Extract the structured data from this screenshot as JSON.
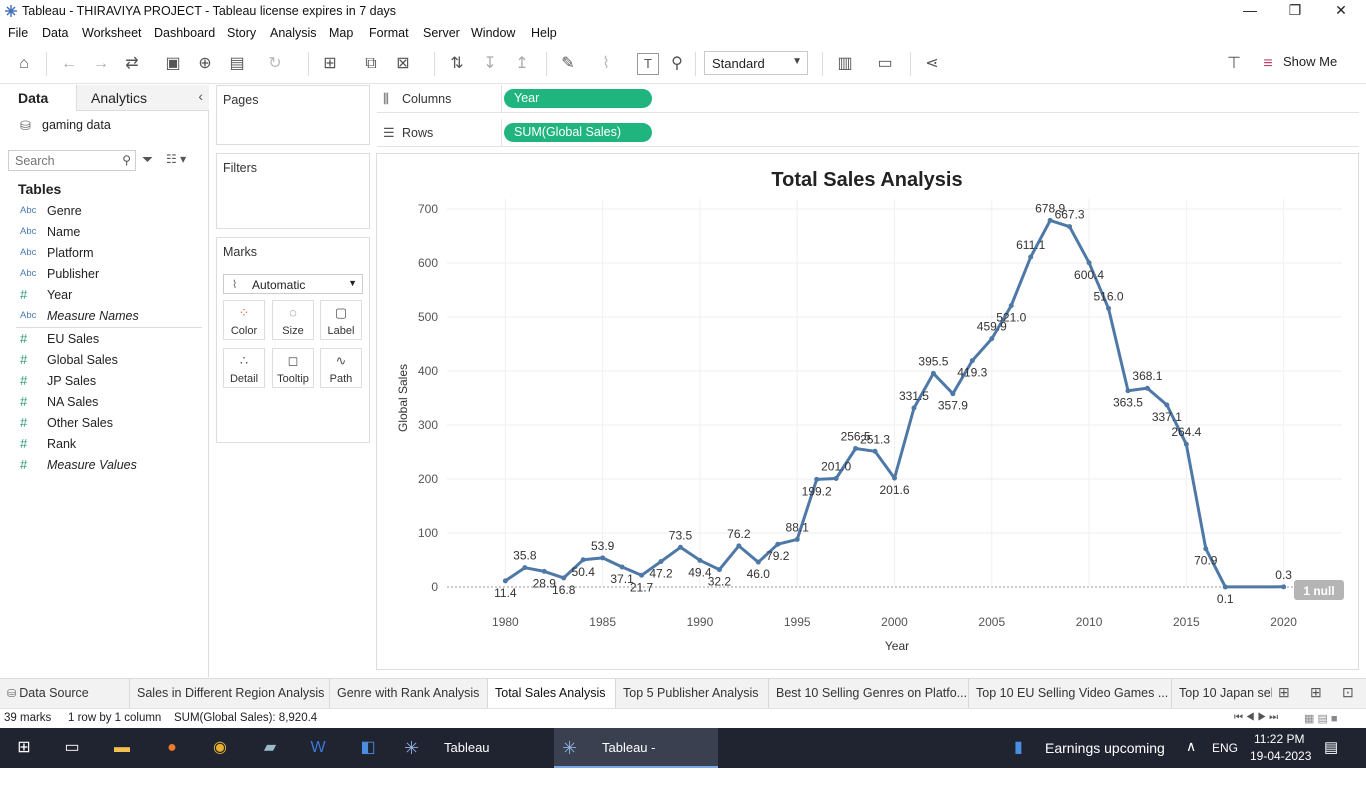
{
  "window": {
    "title": "Tableau - THIRAVIYA PROJECT - Tableau license expires in 7 days",
    "minimize": "—",
    "maximize": "❐",
    "close": "✕"
  },
  "menu": [
    "File",
    "Data",
    "Worksheet",
    "Dashboard",
    "Story",
    "Analysis",
    "Map",
    "Format",
    "Server",
    "Window",
    "Help"
  ],
  "toolbar": {
    "fit_value": "Standard",
    "show_me": "Show Me"
  },
  "left_pane": {
    "tab_data": "Data",
    "tab_analytics": "Analytics",
    "datasource": "gaming data",
    "search_placeholder": "Search",
    "tables_label": "Tables",
    "dimensions": [
      {
        "type": "Abc",
        "name": "Genre"
      },
      {
        "type": "Abc",
        "name": "Name"
      },
      {
        "type": "Abc",
        "name": "Platform"
      },
      {
        "type": "Abc",
        "name": "Publisher"
      },
      {
        "type": "#",
        "name": "Year"
      },
      {
        "type": "Abc",
        "name": "Measure Names"
      }
    ],
    "measures": [
      {
        "type": "#",
        "name": "EU Sales"
      },
      {
        "type": "#",
        "name": "Global Sales"
      },
      {
        "type": "#",
        "name": "JP Sales"
      },
      {
        "type": "#",
        "name": "NA Sales"
      },
      {
        "type": "#",
        "name": "Other Sales"
      },
      {
        "type": "#",
        "name": "Rank"
      },
      {
        "type": "#",
        "name": "Measure Values"
      }
    ]
  },
  "cards": {
    "pages": "Pages",
    "filters": "Filters",
    "marks": "Marks",
    "mark_type": "Automatic",
    "mark_buttons": [
      "Color",
      "Size",
      "Label",
      "Detail",
      "Tooltip",
      "Path"
    ]
  },
  "shelves": {
    "columns_label": "Columns",
    "columns_pill": "Year",
    "rows_label": "Rows",
    "rows_pill": "SUM(Global Sales)"
  },
  "chart_data": {
    "type": "line",
    "title": "Total Sales Analysis",
    "xlabel": "Year",
    "ylabel": "Global Sales",
    "xlim": [
      1977,
      2023
    ],
    "ylim": [
      0,
      700
    ],
    "x_ticks": [
      1980,
      1985,
      1990,
      1995,
      2000,
      2005,
      2010,
      2015,
      2020
    ],
    "y_ticks": [
      0,
      100,
      200,
      300,
      400,
      500,
      600,
      700
    ],
    "grid": true,
    "line_color": "#4e79a7",
    "null_indicator": "1 null",
    "x": [
      1980,
      1981,
      1982,
      1983,
      1984,
      1985,
      1986,
      1987,
      1988,
      1989,
      1990,
      1991,
      1992,
      1993,
      1994,
      1995,
      1996,
      1997,
      1998,
      1999,
      2000,
      2001,
      2002,
      2003,
      2004,
      2005,
      2006,
      2007,
      2008,
      2009,
      2010,
      2011,
      2012,
      2013,
      2014,
      2015,
      2016,
      2017,
      2020
    ],
    "values": [
      11.4,
      35.8,
      28.9,
      16.8,
      50.4,
      53.9,
      37.1,
      21.7,
      47.2,
      73.5,
      49.4,
      32.2,
      76.2,
      46.0,
      79.2,
      88.1,
      199.2,
      201.0,
      256.5,
      251.3,
      201.6,
      331.5,
      395.5,
      357.9,
      419.3,
      459.9,
      521.0,
      611.1,
      678.9,
      667.3,
      600.4,
      516.0,
      363.5,
      368.1,
      337.1,
      264.4,
      70.9,
      0.1,
      0.3
    ],
    "labels": [
      "11.4",
      "35.8",
      "28.9",
      "16.8",
      "50.4",
      "53.9",
      "37.1",
      "21.7",
      "47.2",
      "73.5",
      "49.4",
      "32.2",
      "76.2",
      "46.0",
      "79.2",
      "88.1",
      "199.2",
      "201.0",
      "256.5",
      "251.3",
      "201.6",
      "331.5",
      "395.5",
      "357.9",
      "419.3",
      "459.9",
      "521.0",
      "611.1",
      "678.9",
      "667.3",
      "600.4",
      "516.0",
      "363.5",
      "368.1",
      "337.1",
      "264.4",
      "70.9",
      "0.1",
      "0.3"
    ]
  },
  "sheet_tabs": [
    "Data Source",
    "Sales in Different Region Analysis",
    "Genre with Rank Analysis",
    "Total Sales Analysis",
    "Top 5 Publisher Analysis",
    "Best 10 Selling Genres on Platfo...",
    "Top 10 EU Selling Video Games ...",
    "Top 10 Japan sel"
  ],
  "active_tab": "Total Sales Analysis",
  "status": {
    "marks": "39 marks",
    "dims": "1 row by 1 column",
    "sum": "SUM(Global Sales): 8,920.4"
  },
  "taskbar": {
    "app1": "Tableau",
    "app2": "Tableau - THIRAVIY...",
    "news": "Earnings upcoming",
    "lang": "ENG",
    "time": "11:22 PM",
    "date": "19-04-2023"
  }
}
